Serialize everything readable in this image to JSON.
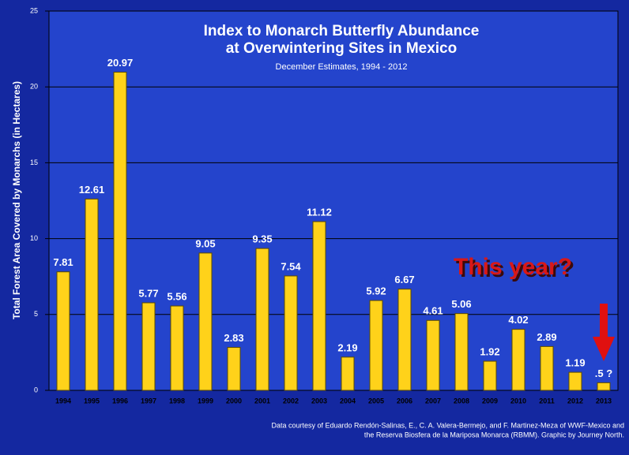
{
  "chart_data": {
    "type": "bar",
    "title": [
      "Index to Monarch Butterfly Abundance",
      "at Overwintering Sites in Mexico"
    ],
    "subtitle": "December Estimates, 1994 - 2012",
    "y_label": "Total Forest Area  Covered by Monarchs (in Hectares)",
    "annotation": "This year?",
    "credit": [
      "Data courtesy of Eduardo Rendón-Salinas, E., C. A. Valera-Bermejo, and F. Martinez-Meza of WWF-Mexico and",
      "the Reserva Biosfera de la Mariposa Monarca (RBMM). Graphic by Journey North."
    ],
    "categories": [
      "1994",
      "1995",
      "1996",
      "1997",
      "1998",
      "1999",
      "2000",
      "2001",
      "2002",
      "2003",
      "2004",
      "2005",
      "2006",
      "2007",
      "2008",
      "2009",
      "2010",
      "2011",
      "2012",
      "2013"
    ],
    "values": [
      7.81,
      12.61,
      20.97,
      5.77,
      5.56,
      9.05,
      2.83,
      9.35,
      7.54,
      11.12,
      2.19,
      5.92,
      6.67,
      4.61,
      5.06,
      1.92,
      4.02,
      2.89,
      1.19,
      0.5
    ],
    "value_labels": [
      "7.81",
      "12.61",
      "20.97",
      "5.77",
      "5.56",
      "9.05",
      "2.83",
      "9.35",
      "7.54",
      "11.12",
      "2.19",
      "5.92",
      "6.67",
      "4.61",
      "5.06",
      "1.92",
      "4.02",
      "2.89",
      "1.19",
      ".5 ?"
    ],
    "color": "#ffd21a",
    "ylim": [
      0,
      25
    ],
    "yticks": [
      0,
      5,
      10,
      15,
      20,
      25
    ],
    "grid": true
  }
}
